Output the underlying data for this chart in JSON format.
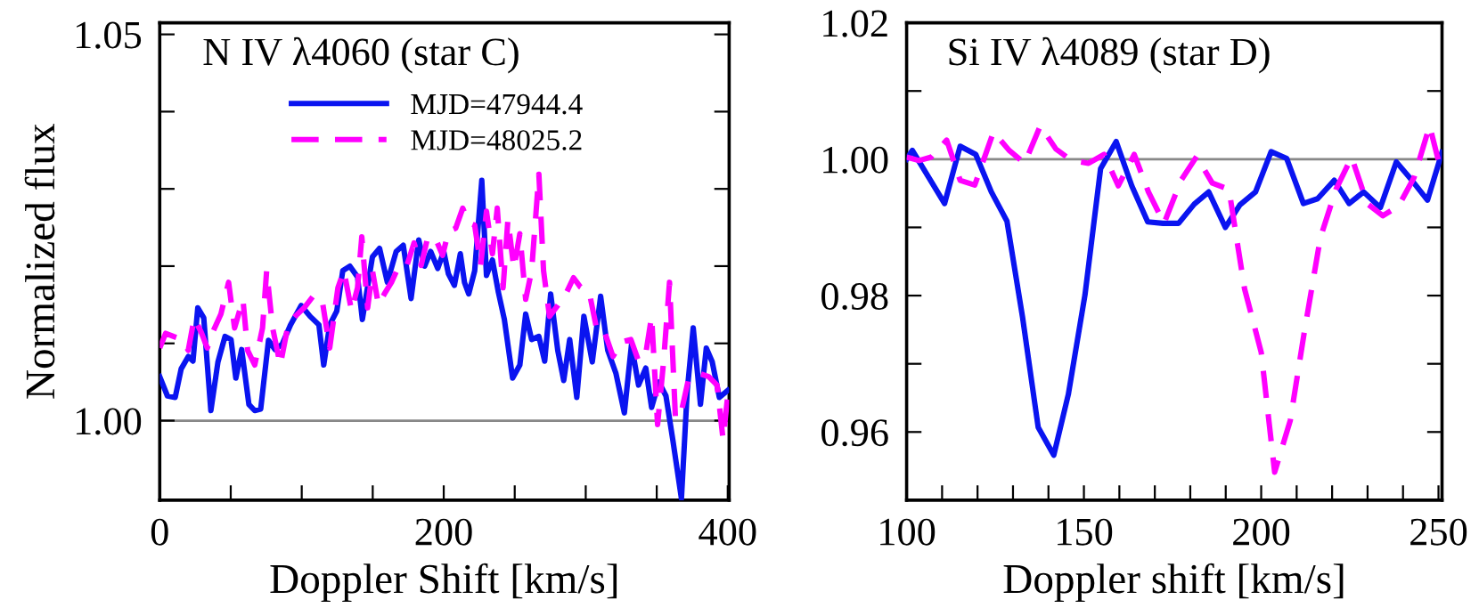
{
  "chart_data": [
    {
      "type": "line",
      "title": "N IV λ4060 (star C)",
      "xlabel": "Doppler Shift [km/s]",
      "ylabel": "Normalized flux",
      "xlim": [
        0,
        401
      ],
      "ylim": [
        0.9897,
        1.0515
      ],
      "xticks": [
        0,
        {
          "value": 50,
          "label": null
        },
        {
          "value": 100,
          "label": null
        },
        {
          "value": 150,
          "label": null
        },
        200,
        {
          "value": 250,
          "label": null
        },
        {
          "value": 300,
          "label": null
        },
        {
          "value": 350,
          "label": null
        },
        400
      ],
      "yticks": [
        {
          "value": 1.0,
          "label": "1.00"
        },
        {
          "value": 1.01,
          "label": null
        },
        {
          "value": 1.02,
          "label": null
        },
        {
          "value": 1.03,
          "label": null
        },
        {
          "value": 1.04,
          "label": null
        },
        1.05
      ],
      "ref_lines": [
        {
          "axis": "y",
          "value": 1.0,
          "color": "#888888"
        }
      ],
      "legend": "top left",
      "grid": false,
      "series": [
        {
          "name": "MJD=47944.4",
          "color": "#0a14f0",
          "line_style": "solid",
          "x": [
            0,
            5.4,
            10.9,
            15.1,
            20.1,
            23.4,
            26.8,
            31,
            36,
            41,
            46,
            50.2,
            53.6,
            57.7,
            62.8,
            66.9,
            71.1,
            76.6,
            81.2,
            86.2,
            92.1,
            99.6,
            105.9,
            112.1,
            115.5,
            119.7,
            124.7,
            128.9,
            133.9,
            139.3,
            142.7,
            149.8,
            154.8,
            160.3,
            166.5,
            171.5,
            177,
            182.4,
            186.6,
            190.8,
            195.8,
            200,
            203.3,
            207.5,
            211.7,
            214.6,
            217.6,
            221.8,
            226.8,
            230.1,
            234.3,
            238.5,
            242.7,
            248.5,
            253.6,
            257.7,
            261.9,
            267,
            271.1,
            275.3,
            280.3,
            284.5,
            288.7,
            293.7,
            298.7,
            304.6,
            310.5,
            315.5,
            321.3,
            327.2,
            332.2,
            337.2,
            342.3,
            346.4,
            351.5,
            356.5,
            361.5,
            367.4,
            371.5,
            375.7,
            380.8,
            384.9,
            389.1,
            394.1,
            400
          ],
          "values": [
            1.0057,
            1.0032,
            1.003,
            1.0067,
            1.0083,
            1.0077,
            1.0146,
            1.0133,
            1.0013,
            1.0076,
            1.0109,
            1.0105,
            1.0055,
            1.0092,
            1.0021,
            1.0013,
            1.0015,
            1.0104,
            1.0092,
            1.0099,
            1.0124,
            1.0149,
            1.0135,
            1.0124,
            1.0072,
            1.0124,
            1.0142,
            1.0194,
            1.02,
            1.0186,
            1.0131,
            1.0212,
            1.0223,
            1.0179,
            1.0219,
            1.0227,
            1.0158,
            1.0234,
            1.02,
            1.0219,
            1.0197,
            1.0219,
            1.019,
            1.0175,
            1.0216,
            1.0179,
            1.0164,
            1.0194,
            1.0311,
            1.0188,
            1.0208,
            1.0166,
            1.0131,
            1.0055,
            1.0072,
            1.0138,
            1.0105,
            1.0109,
            1.0077,
            1.0164,
            1.0091,
            1.0052,
            1.0105,
            1.003,
            1.0135,
            1.0076,
            1.0161,
            1.0091,
            1.0061,
            1.001,
            1.0098,
            1.0046,
            1.0068,
            1.0017,
            1.005,
            1.0032,
            0.9973,
            0.9899,
            1.0039,
            1.012,
            1.0021,
            1.0094,
            1.0076,
            1.003,
            1.0039
          ]
        },
        {
          "name": "MJD=48025.2",
          "color": "#ff00ff",
          "line_style": "dashed",
          "x": [
            0,
            4.2,
            9.6,
            15.9,
            20.1,
            24.3,
            29.3,
            33.5,
            37.7,
            43.1,
            48.5,
            52.7,
            58.6,
            61.9,
            66.9,
            72.4,
            75.3,
            79.5,
            84.9,
            90.4,
            95.4,
            101.7,
            108,
            114.2,
            119.7,
            125.5,
            129.7,
            135.1,
            139.3,
            142.3,
            146.4,
            149.8,
            154,
            158.2,
            163.2,
            168.6,
            174.1,
            179.1,
            184.1,
            188.3,
            193.7,
            199.2,
            203.3,
            208.4,
            213.4,
            217.6,
            221.8,
            226,
            230.1,
            234.3,
            237.7,
            241.8,
            245.2,
            249.4,
            253.6,
            257.7,
            261.9,
            264.9,
            267,
            270.3,
            274.5,
            280.3,
            286,
            291.4,
            296.2,
            302.5,
            308,
            313,
            319.2,
            325.5,
            331.8,
            337.2,
            342.3,
            346.4,
            350.6,
            354.8,
            359,
            363.2,
            367.4,
            372.4,
            379.9,
            386.6,
            392.5,
            396.7,
            400
          ],
          "values": [
            1.0094,
            1.0113,
            1.0109,
            1.0105,
            1.0091,
            1.0133,
            1.0114,
            1.0094,
            1.0116,
            1.0138,
            1.0179,
            1.012,
            1.0157,
            1.0091,
            1.0072,
            1.012,
            1.0194,
            1.012,
            1.0072,
            1.0124,
            1.0135,
            1.0146,
            1.0161,
            1.0158,
            1.0094,
            1.0172,
            1.0194,
            1.0142,
            1.0172,
            1.0238,
            1.0146,
            1.0194,
            1.015,
            1.0164,
            1.0179,
            1.0201,
            1.0201,
            1.023,
            1.0201,
            1.0234,
            1.0238,
            1.0214,
            1.0245,
            1.0249,
            1.0275,
            1.0256,
            1.0253,
            1.0201,
            1.0271,
            1.0216,
            1.0275,
            1.0172,
            1.026,
            1.0197,
            1.0242,
            1.0157,
            1.0194,
            1.0267,
            1.0319,
            1.0194,
            1.0135,
            1.0149,
            1.0164,
            1.0185,
            1.0173,
            1.0166,
            1.0116,
            1.0116,
            1.0083,
            1.0102,
            1.0105,
            1.0077,
            1.0087,
            1.0135,
            0.9995,
            1.0076,
            1.0179,
            1.0002,
            1.0012,
            1.0054,
            1.0061,
            1.0057,
            1.0046,
            0.9976,
            1.0032
          ]
        }
      ]
    },
    {
      "type": "line",
      "title": "Si IV λ4089 (star D)",
      "xlabel": "Doppler shift [km/s]",
      "xlim": [
        100,
        251
      ],
      "ylim": [
        0.95,
        1.02
      ],
      "xticks": [
        100,
        {
          "value": 110,
          "label": null
        },
        {
          "value": 120,
          "label": null
        },
        {
          "value": 130,
          "label": null
        },
        {
          "value": 140,
          "label": null
        },
        150,
        {
          "value": 160,
          "label": null
        },
        {
          "value": 170,
          "label": null
        },
        {
          "value": 180,
          "label": null
        },
        {
          "value": 190,
          "label": null
        },
        200,
        {
          "value": 210,
          "label": null
        },
        {
          "value": 220,
          "label": null
        },
        {
          "value": 230,
          "label": null
        },
        {
          "value": 240,
          "label": null
        },
        250
      ],
      "yticks": [
        0.96,
        {
          "value": 0.97,
          "label": null
        },
        0.98,
        {
          "value": 0.99,
          "label": null
        },
        {
          "value": 1.0,
          "label": "1.00"
        },
        {
          "value": 1.01,
          "label": null
        },
        1.02
      ],
      "ref_lines": [
        {
          "axis": "y",
          "value": 1.0,
          "color": "#888888"
        }
      ],
      "legend": false,
      "grid": false,
      "series": [
        {
          "color": "#0a14f0",
          "line_style": "solid",
          "x": [
            100,
            101.6,
            110.7,
            115.1,
            119.5,
            123.9,
            128.3,
            132.7,
            137.1,
            141.5,
            145.6,
            150.3,
            154.7,
            159.1,
            163.5,
            168,
            172.3,
            176.7,
            181.1,
            185.2,
            189.9,
            194,
            198.4,
            202.8,
            207.2,
            211.9,
            215.9,
            220.6,
            224.8,
            228.9,
            233.6,
            238.1,
            242.5,
            246.9,
            251
          ],
          "values": [
            1.0,
            1.0013,
            0.9935,
            1.0019,
            1.0007,
            0.9952,
            0.9909,
            0.9768,
            0.9607,
            0.9566,
            0.9655,
            0.9801,
            0.9986,
            1.0026,
            0.9961,
            0.9908,
            0.9906,
            0.9906,
            0.9934,
            0.9952,
            0.99,
            0.9933,
            0.9952,
            1.0011,
            1.0001,
            0.9935,
            0.9942,
            0.9969,
            0.9935,
            0.9952,
            0.9929,
            0.9996,
            0.9969,
            0.994,
            1.001
          ]
        },
        {
          "color": "#ff00ff",
          "line_style": "dashed",
          "x": [
            100,
            103.5,
            106.9,
            111.3,
            115.1,
            119.2,
            124.5,
            128.9,
            133.3,
            137.7,
            142.1,
            146.5,
            151.3,
            155.7,
            159.7,
            164.2,
            168.2,
            172.6,
            177.4,
            181.8,
            186.2,
            190.9,
            195.3,
            200,
            203.8,
            208.2,
            212.3,
            216.7,
            221.1,
            225.5,
            229.9,
            234.3,
            238.7,
            243.1,
            247.5,
            251
          ],
          "values": [
            1.0003,
            0.9998,
            1.0003,
            1.0028,
            0.9969,
            0.9962,
            1.004,
            1.0013,
            0.9994,
            1.0049,
            1.0015,
            0.9998,
            0.9994,
            1.0007,
            0.9961,
            1.0007,
            0.9952,
            0.9906,
            0.9969,
            1.0004,
            0.9965,
            0.9956,
            0.981,
            0.9717,
            0.9541,
            0.9617,
            0.9751,
            0.9885,
            0.9956,
            1.0003,
            0.9935,
            0.9917,
            0.9931,
            0.9973,
            1.0049,
            0.9977
          ]
        }
      ]
    }
  ]
}
